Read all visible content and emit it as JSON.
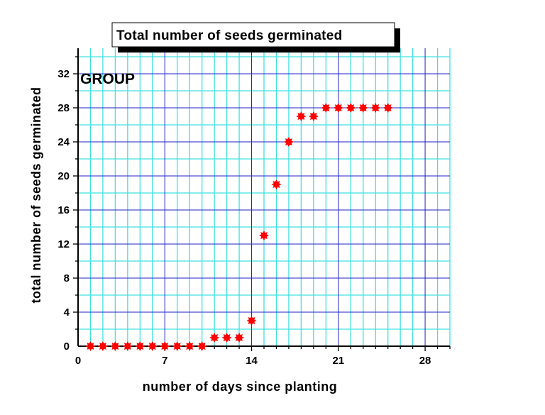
{
  "chart_data": {
    "type": "scatter",
    "title": "Total number of seeds germinated",
    "annotation": "GROUP",
    "xlabel": "number of days since planting",
    "ylabel": "total number of seeds germinated",
    "xlim": [
      0,
      30
    ],
    "ylim": [
      0,
      35
    ],
    "x_ticks": [
      0,
      7,
      14,
      21,
      28
    ],
    "y_ticks": [
      0,
      4,
      8,
      12,
      16,
      20,
      24,
      28,
      32
    ],
    "grid": true,
    "marker_color": "#ff0000",
    "grid_major_color": "#2020c8",
    "grid_minor_color": "#40e0e0",
    "x": [
      1,
      2,
      3,
      4,
      5,
      6,
      7,
      8,
      9,
      10,
      11,
      12,
      13,
      14,
      15,
      16,
      17,
      18,
      19,
      20,
      21,
      22,
      23,
      24,
      25
    ],
    "y": [
      0,
      0,
      0,
      0,
      0,
      0,
      0,
      0,
      0,
      0,
      1,
      1,
      1,
      3,
      13,
      19,
      24,
      27,
      27,
      28,
      28,
      28,
      28,
      28,
      28
    ]
  }
}
